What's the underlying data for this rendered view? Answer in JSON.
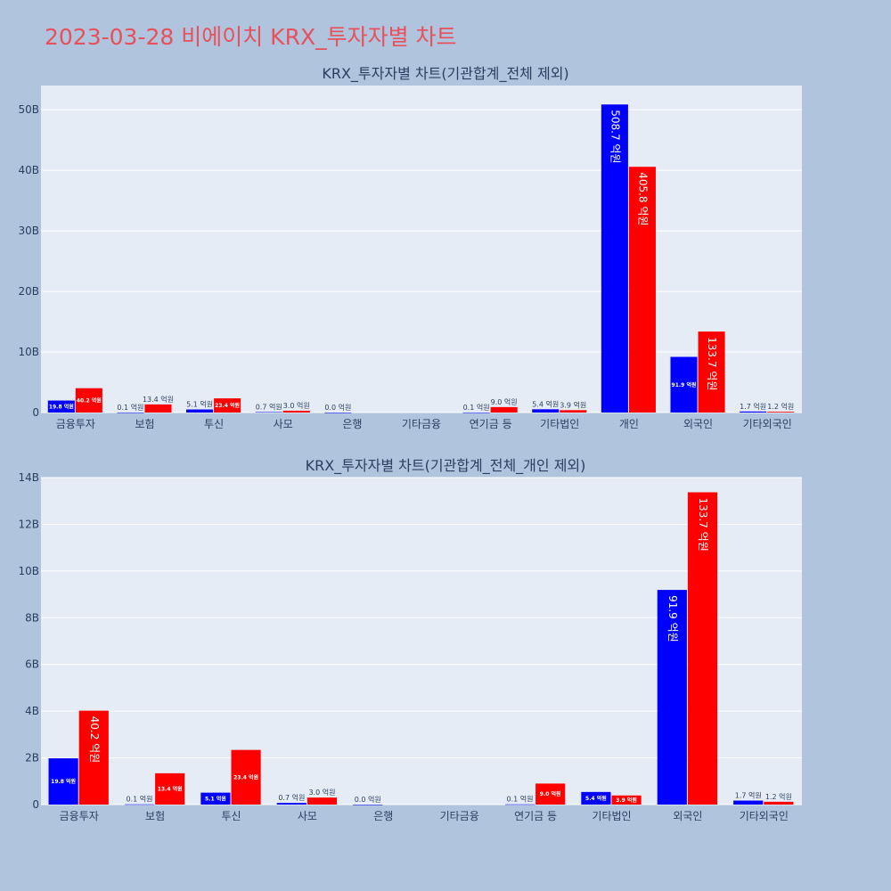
{
  "page_title": "2023-03-28 비에이치 KRX_투자자별 차트",
  "colors": {
    "buy": "#0000ff",
    "sell": "#ff0000",
    "plot_bg": "#e5ecf6",
    "page_bg": "#b0c4de",
    "title": "#e8505b"
  },
  "chart_data": [
    {
      "type": "bar",
      "title": "KRX_투자자별 차트(기관합계_전체 제외)",
      "categories": [
        "금융투자",
        "보험",
        "투신",
        "사모",
        "은행",
        "기타금융",
        "연기금 등",
        "기타법인",
        "개인",
        "외국인",
        "기타외국인"
      ],
      "series": [
        {
          "values": [
            1980000000,
            10000000,
            510000000,
            70000000,
            0,
            null,
            10000000,
            540000000,
            50870000000,
            9190000000,
            170000000
          ],
          "labels": [
            "19.8 억원",
            "0.1 억원",
            "5.1 억원",
            "0.7 억원",
            "0.0 억원",
            "",
            "0.1 억원",
            "5.4 억원",
            "508.7 억원",
            "91.9 억원",
            "1.7 억원"
          ]
        },
        {
          "values": [
            4020000000,
            1340000000,
            2340000000,
            300000000,
            null,
            null,
            900000000,
            390000000,
            40580000000,
            13370000000,
            120000000
          ],
          "labels": [
            "40.2 억원",
            "13.4 억원",
            "23.4 억원",
            "3.0 억원",
            "",
            "",
            "9.0 억원",
            "3.9 억원",
            "405.8 억원",
            "133.7 억원",
            "1.2 억원"
          ]
        }
      ],
      "ylim": [
        0,
        54000000000
      ],
      "yticks": [
        0,
        10000000000,
        20000000000,
        30000000000,
        40000000000,
        50000000000
      ],
      "ytick_labels": [
        "0",
        "10B",
        "20B",
        "30B",
        "40B",
        "50B"
      ],
      "grid": true
    },
    {
      "type": "bar",
      "title": "KRX_투자자별 차트(기관합계_전체_개인 제외)",
      "categories": [
        "금융투자",
        "보험",
        "투신",
        "사모",
        "은행",
        "기타금융",
        "연기금 등",
        "기타법인",
        "외국인",
        "기타외국인"
      ],
      "series": [
        {
          "values": [
            1980000000,
            10000000,
            510000000,
            70000000,
            0,
            null,
            10000000,
            540000000,
            9190000000,
            170000000
          ],
          "labels": [
            "19.8 억원",
            "0.1 억원",
            "5.1 억원",
            "0.7 억원",
            "0.0 억원",
            "",
            "0.1 억원",
            "5.4 억원",
            "91.9 억원",
            "1.7 억원"
          ]
        },
        {
          "values": [
            4020000000,
            1340000000,
            2340000000,
            300000000,
            null,
            null,
            900000000,
            390000000,
            13370000000,
            120000000
          ],
          "labels": [
            "40.2 억원",
            "13.4 억원",
            "23.4 억원",
            "3.0 억원",
            "",
            "",
            "9.0 억원",
            "3.9 억원",
            "133.7 억원",
            "1.2 억원"
          ]
        }
      ],
      "ylim": [
        0,
        14000000000
      ],
      "yticks": [
        0,
        2000000000,
        4000000000,
        6000000000,
        8000000000,
        10000000000,
        12000000000,
        14000000000
      ],
      "ytick_labels": [
        "0",
        "2B",
        "4B",
        "6B",
        "8B",
        "10B",
        "12B",
        "14B"
      ],
      "grid": true
    }
  ]
}
